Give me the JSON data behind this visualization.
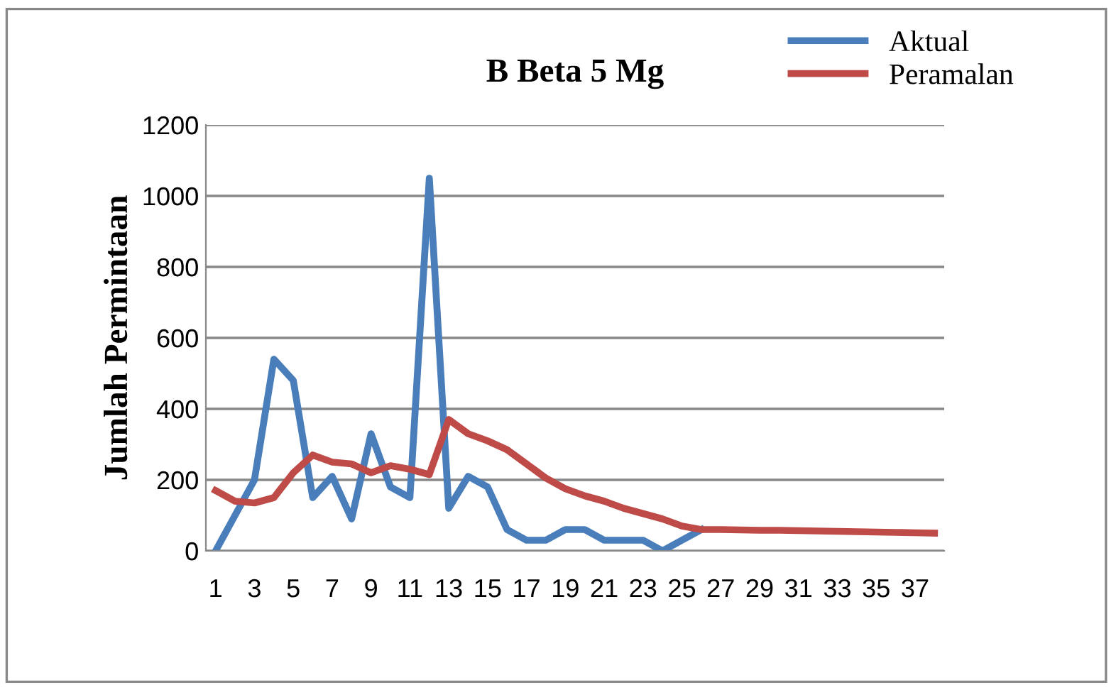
{
  "chart_data": {
    "type": "line",
    "title": "B Beta 5 Mg",
    "ylabel": "Jumlah Permintaan",
    "categories": [
      "1",
      null,
      "3",
      null,
      "5",
      null,
      "7",
      null,
      "9",
      null,
      "11",
      null,
      "13",
      null,
      "15",
      null,
      "17",
      null,
      "19",
      null,
      "21",
      null,
      "23",
      null,
      "25",
      null,
      "27",
      null,
      "29",
      null,
      "31",
      null,
      "33",
      null,
      "35",
      null,
      "37",
      null
    ],
    "series": [
      {
        "name": "Aktual",
        "color": "#4a7ebb",
        "values": [
          0,
          100,
          200,
          540,
          480,
          150,
          210,
          90,
          330,
          180,
          150,
          1050,
          120,
          210,
          180,
          60,
          30,
          30,
          60,
          60,
          30,
          30,
          30,
          0,
          30,
          60,
          null,
          null,
          null,
          null,
          null,
          null,
          null,
          null,
          null,
          null,
          null,
          null
        ]
      },
      {
        "name": "Peramalan",
        "color": "#be4b48",
        "values": [
          170,
          140,
          135,
          150,
          220,
          270,
          250,
          245,
          220,
          240,
          230,
          215,
          370,
          330,
          310,
          285,
          245,
          205,
          175,
          155,
          140,
          120,
          105,
          90,
          70,
          60,
          60,
          59,
          58,
          58,
          57,
          56,
          55,
          54,
          53,
          52,
          51,
          50
        ]
      }
    ],
    "ylim": [
      0,
      1200
    ],
    "yticks": [
      0,
      200,
      400,
      600,
      800,
      1000,
      1200
    ],
    "grid": "y",
    "legend": "top right",
    "marker": "none",
    "line_style": "solid"
  }
}
